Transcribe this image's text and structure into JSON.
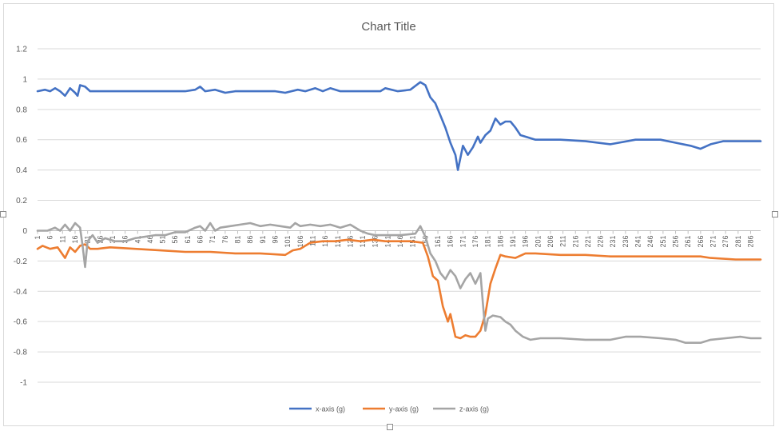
{
  "chart_data": {
    "type": "line",
    "title": "Chart Title",
    "xlabel": "",
    "ylabel": "",
    "x_range": [
      1,
      290
    ],
    "ylim": [
      -1,
      1.2
    ],
    "y_ticks": [
      1.2,
      1,
      0.8,
      0.6,
      0.4,
      0.2,
      0,
      -0.2,
      -0.4,
      -0.6,
      -0.8,
      -1
    ],
    "y_tick_labels": [
      "1.2",
      "1",
      "0.8",
      "0.6",
      "0.4",
      "0.2",
      "0",
      "-0.2",
      "-0.4",
      "-0.6",
      "-0.8",
      "-1"
    ],
    "x_tick_labels": [
      "1",
      "6",
      "11",
      "16",
      "21",
      "26",
      "31",
      "36",
      "41",
      "46",
      "51",
      "56",
      "61",
      "66",
      "71",
      "76",
      "81",
      "86",
      "91",
      "96",
      "101",
      "106",
      "111",
      "116",
      "121",
      "126",
      "131",
      "136",
      "141",
      "146",
      "151",
      "156",
      "161",
      "166",
      "171",
      "176",
      "181",
      "186",
      "191",
      "196",
      "201",
      "206",
      "211",
      "216",
      "221",
      "226",
      "231",
      "236",
      "241",
      "246",
      "251",
      "256",
      "261",
      "266",
      "271",
      "276",
      "281",
      "286"
    ],
    "grid": true,
    "legend_position": "bottom",
    "series": [
      {
        "name": "x-axis (g)",
        "color": "#4472C4",
        "points": [
          [
            1,
            0.92
          ],
          [
            4,
            0.93
          ],
          [
            6,
            0.92
          ],
          [
            8,
            0.94
          ],
          [
            10,
            0.92
          ],
          [
            12,
            0.89
          ],
          [
            14,
            0.94
          ],
          [
            16,
            0.91
          ],
          [
            17,
            0.89
          ],
          [
            18,
            0.96
          ],
          [
            20,
            0.95
          ],
          [
            22,
            0.92
          ],
          [
            25,
            0.92
          ],
          [
            30,
            0.92
          ],
          [
            40,
            0.92
          ],
          [
            50,
            0.92
          ],
          [
            60,
            0.92
          ],
          [
            64,
            0.93
          ],
          [
            66,
            0.95
          ],
          [
            68,
            0.92
          ],
          [
            72,
            0.93
          ],
          [
            76,
            0.91
          ],
          [
            80,
            0.92
          ],
          [
            90,
            0.92
          ],
          [
            96,
            0.92
          ],
          [
            100,
            0.91
          ],
          [
            105,
            0.93
          ],
          [
            108,
            0.92
          ],
          [
            112,
            0.94
          ],
          [
            115,
            0.92
          ],
          [
            118,
            0.94
          ],
          [
            122,
            0.92
          ],
          [
            130,
            0.92
          ],
          [
            138,
            0.92
          ],
          [
            140,
            0.94
          ],
          [
            145,
            0.92
          ],
          [
            150,
            0.93
          ],
          [
            154,
            0.98
          ],
          [
            156,
            0.96
          ],
          [
            158,
            0.88
          ],
          [
            160,
            0.84
          ],
          [
            162,
            0.76
          ],
          [
            164,
            0.68
          ],
          [
            166,
            0.58
          ],
          [
            168,
            0.5
          ],
          [
            169,
            0.4
          ],
          [
            171,
            0.56
          ],
          [
            173,
            0.5
          ],
          [
            175,
            0.55
          ],
          [
            177,
            0.62
          ],
          [
            178,
            0.58
          ],
          [
            180,
            0.63
          ],
          [
            182,
            0.66
          ],
          [
            184,
            0.74
          ],
          [
            186,
            0.7
          ],
          [
            188,
            0.72
          ],
          [
            190,
            0.72
          ],
          [
            192,
            0.68
          ],
          [
            194,
            0.63
          ],
          [
            196,
            0.62
          ],
          [
            200,
            0.6
          ],
          [
            210,
            0.6
          ],
          [
            220,
            0.59
          ],
          [
            230,
            0.57
          ],
          [
            240,
            0.6
          ],
          [
            250,
            0.6
          ],
          [
            256,
            0.58
          ],
          [
            262,
            0.56
          ],
          [
            266,
            0.54
          ],
          [
            270,
            0.57
          ],
          [
            275,
            0.59
          ],
          [
            280,
            0.59
          ],
          [
            286,
            0.59
          ],
          [
            290,
            0.59
          ]
        ]
      },
      {
        "name": "y-axis (g)",
        "color": "#ED7D31",
        "points": [
          [
            1,
            -0.12
          ],
          [
            3,
            -0.1
          ],
          [
            6,
            -0.12
          ],
          [
            9,
            -0.11
          ],
          [
            12,
            -0.18
          ],
          [
            14,
            -0.11
          ],
          [
            16,
            -0.14
          ],
          [
            18,
            -0.1
          ],
          [
            20,
            -0.09
          ],
          [
            22,
            -0.12
          ],
          [
            25,
            -0.12
          ],
          [
            30,
            -0.11
          ],
          [
            40,
            -0.12
          ],
          [
            50,
            -0.13
          ],
          [
            60,
            -0.14
          ],
          [
            70,
            -0.14
          ],
          [
            80,
            -0.15
          ],
          [
            90,
            -0.15
          ],
          [
            100,
            -0.16
          ],
          [
            103,
            -0.13
          ],
          [
            106,
            -0.12
          ],
          [
            110,
            -0.08
          ],
          [
            115,
            -0.07
          ],
          [
            120,
            -0.07
          ],
          [
            125,
            -0.06
          ],
          [
            130,
            -0.07
          ],
          [
            135,
            -0.06
          ],
          [
            140,
            -0.07
          ],
          [
            145,
            -0.07
          ],
          [
            150,
            -0.07
          ],
          [
            155,
            -0.08
          ],
          [
            157,
            -0.17
          ],
          [
            159,
            -0.3
          ],
          [
            161,
            -0.33
          ],
          [
            163,
            -0.5
          ],
          [
            165,
            -0.6
          ],
          [
            166,
            -0.55
          ],
          [
            168,
            -0.7
          ],
          [
            170,
            -0.71
          ],
          [
            172,
            -0.69
          ],
          [
            174,
            -0.7
          ],
          [
            176,
            -0.7
          ],
          [
            178,
            -0.66
          ],
          [
            180,
            -0.55
          ],
          [
            182,
            -0.35
          ],
          [
            184,
            -0.25
          ],
          [
            186,
            -0.16
          ],
          [
            188,
            -0.17
          ],
          [
            192,
            -0.18
          ],
          [
            196,
            -0.15
          ],
          [
            200,
            -0.15
          ],
          [
            210,
            -0.16
          ],
          [
            220,
            -0.16
          ],
          [
            230,
            -0.17
          ],
          [
            240,
            -0.17
          ],
          [
            250,
            -0.17
          ],
          [
            260,
            -0.17
          ],
          [
            266,
            -0.17
          ],
          [
            270,
            -0.18
          ],
          [
            280,
            -0.19
          ],
          [
            290,
            -0.19
          ]
        ]
      },
      {
        "name": "z-axis (g)",
        "color": "#A5A5A5",
        "points": [
          [
            1,
            0
          ],
          [
            5,
            0
          ],
          [
            8,
            0.02
          ],
          [
            10,
            0
          ],
          [
            12,
            0.04
          ],
          [
            14,
            0
          ],
          [
            16,
            0.05
          ],
          [
            18,
            0.02
          ],
          [
            19,
            -0.1
          ],
          [
            20,
            -0.24
          ],
          [
            21,
            -0.07
          ],
          [
            23,
            -0.03
          ],
          [
            25,
            -0.08
          ],
          [
            28,
            -0.05
          ],
          [
            32,
            -0.07
          ],
          [
            36,
            -0.07
          ],
          [
            40,
            -0.05
          ],
          [
            44,
            -0.04
          ],
          [
            48,
            -0.03
          ],
          [
            52,
            -0.03
          ],
          [
            56,
            -0.01
          ],
          [
            60,
            -0.01
          ],
          [
            64,
            0.02
          ],
          [
            66,
            0.03
          ],
          [
            68,
            0
          ],
          [
            70,
            0.05
          ],
          [
            72,
            0
          ],
          [
            74,
            0.02
          ],
          [
            78,
            0.03
          ],
          [
            82,
            0.04
          ],
          [
            86,
            0.05
          ],
          [
            90,
            0.03
          ],
          [
            94,
            0.04
          ],
          [
            98,
            0.03
          ],
          [
            102,
            0.02
          ],
          [
            104,
            0.05
          ],
          [
            106,
            0.03
          ],
          [
            110,
            0.04
          ],
          [
            114,
            0.03
          ],
          [
            118,
            0.04
          ],
          [
            122,
            0.02
          ],
          [
            126,
            0.04
          ],
          [
            130,
            0
          ],
          [
            133,
            -0.02
          ],
          [
            136,
            -0.03
          ],
          [
            140,
            -0.03
          ],
          [
            146,
            -0.03
          ],
          [
            152,
            -0.02
          ],
          [
            154,
            0.03
          ],
          [
            156,
            -0.04
          ],
          [
            158,
            -0.15
          ],
          [
            160,
            -0.2
          ],
          [
            162,
            -0.28
          ],
          [
            164,
            -0.32
          ],
          [
            166,
            -0.26
          ],
          [
            168,
            -0.3
          ],
          [
            170,
            -0.38
          ],
          [
            172,
            -0.32
          ],
          [
            174,
            -0.28
          ],
          [
            176,
            -0.35
          ],
          [
            178,
            -0.28
          ],
          [
            179,
            -0.48
          ],
          [
            180,
            -0.66
          ],
          [
            181,
            -0.58
          ],
          [
            183,
            -0.56
          ],
          [
            186,
            -0.57
          ],
          [
            188,
            -0.6
          ],
          [
            190,
            -0.62
          ],
          [
            192,
            -0.66
          ],
          [
            195,
            -0.7
          ],
          [
            198,
            -0.72
          ],
          [
            202,
            -0.71
          ],
          [
            210,
            -0.71
          ],
          [
            220,
            -0.72
          ],
          [
            230,
            -0.72
          ],
          [
            236,
            -0.7
          ],
          [
            242,
            -0.7
          ],
          [
            250,
            -0.71
          ],
          [
            256,
            -0.72
          ],
          [
            260,
            -0.74
          ],
          [
            266,
            -0.74
          ],
          [
            270,
            -0.72
          ],
          [
            276,
            -0.71
          ],
          [
            282,
            -0.7
          ],
          [
            286,
            -0.71
          ],
          [
            290,
            -0.71
          ]
        ]
      }
    ]
  }
}
